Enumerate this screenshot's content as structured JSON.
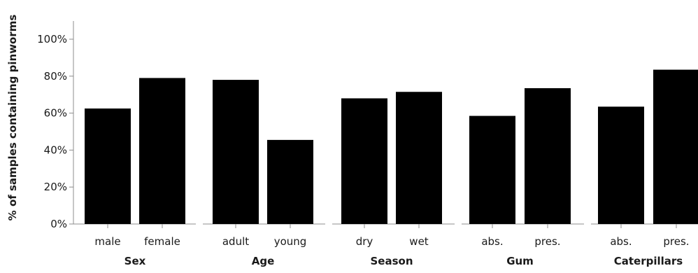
{
  "chart_data": {
    "type": "bar",
    "ylabel": "% of samples containing pinworms",
    "ylim": [
      0,
      100
    ],
    "yticks": [
      0,
      20,
      40,
      60,
      80,
      100
    ],
    "ytick_suffix": "%",
    "grid": false,
    "bar_color": "#000000",
    "groups": [
      {
        "label": "Sex",
        "categories": [
          "male",
          "female"
        ],
        "values": [
          62.5,
          79
        ]
      },
      {
        "label": "Age",
        "categories": [
          "adult",
          "young"
        ],
        "values": [
          78,
          45.5
        ]
      },
      {
        "label": "Season",
        "categories": [
          "dry",
          "wet"
        ],
        "values": [
          68,
          71.5
        ]
      },
      {
        "label": "Gum",
        "categories": [
          "abs.",
          "pres."
        ],
        "values": [
          58.5,
          73.5
        ]
      },
      {
        "label": "Caterpillars",
        "categories": [
          "abs.",
          "pres."
        ],
        "values": [
          63.5,
          83.5
        ]
      }
    ]
  }
}
